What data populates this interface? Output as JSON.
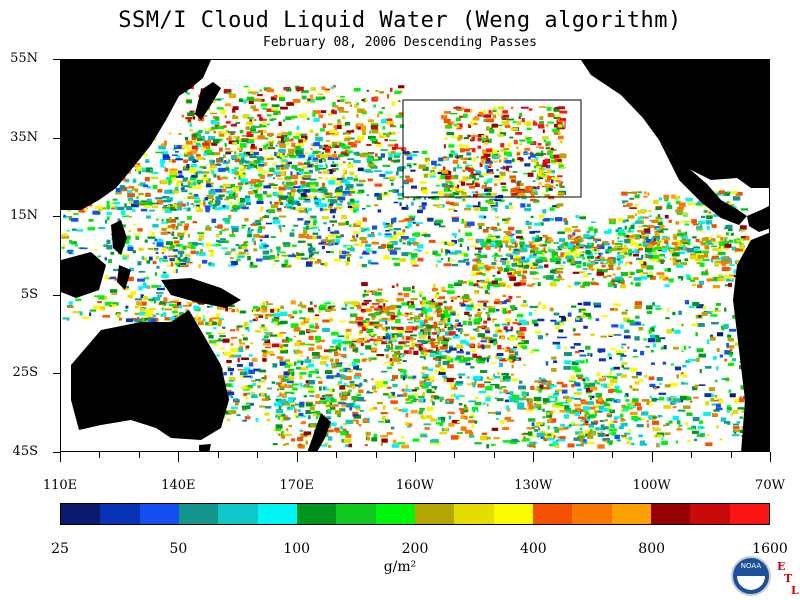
{
  "title": "SSM/I Cloud Liquid Water (Weng algorithm)",
  "subtitle": "February 08, 2006  Descending Passes",
  "map": {
    "lat_labels": [
      "55N",
      "35N",
      "15N",
      "5S",
      "25S",
      "45S"
    ],
    "lon_labels": [
      "110E",
      "140E",
      "170E",
      "160W",
      "130W",
      "100W",
      "70W"
    ],
    "land_color": "#000000",
    "no_data_color": "#ffffff"
  },
  "colorbar": {
    "colors": [
      "#0a1a6e",
      "#0a32b4",
      "#1450f0",
      "#14968c",
      "#10c8c8",
      "#00f5f5",
      "#00961e",
      "#10c81e",
      "#00f50a",
      "#b4a800",
      "#e6dc00",
      "#fafa00",
      "#f55000",
      "#fa7800",
      "#faa000",
      "#960000",
      "#c80a0a",
      "#fa1414"
    ],
    "labels": [
      "25",
      "50",
      "100",
      "200",
      "400",
      "800",
      "1600"
    ],
    "units": "g/m²"
  },
  "logo": {
    "text": "NOAA",
    "etl": [
      "E",
      "T",
      "L"
    ]
  }
}
